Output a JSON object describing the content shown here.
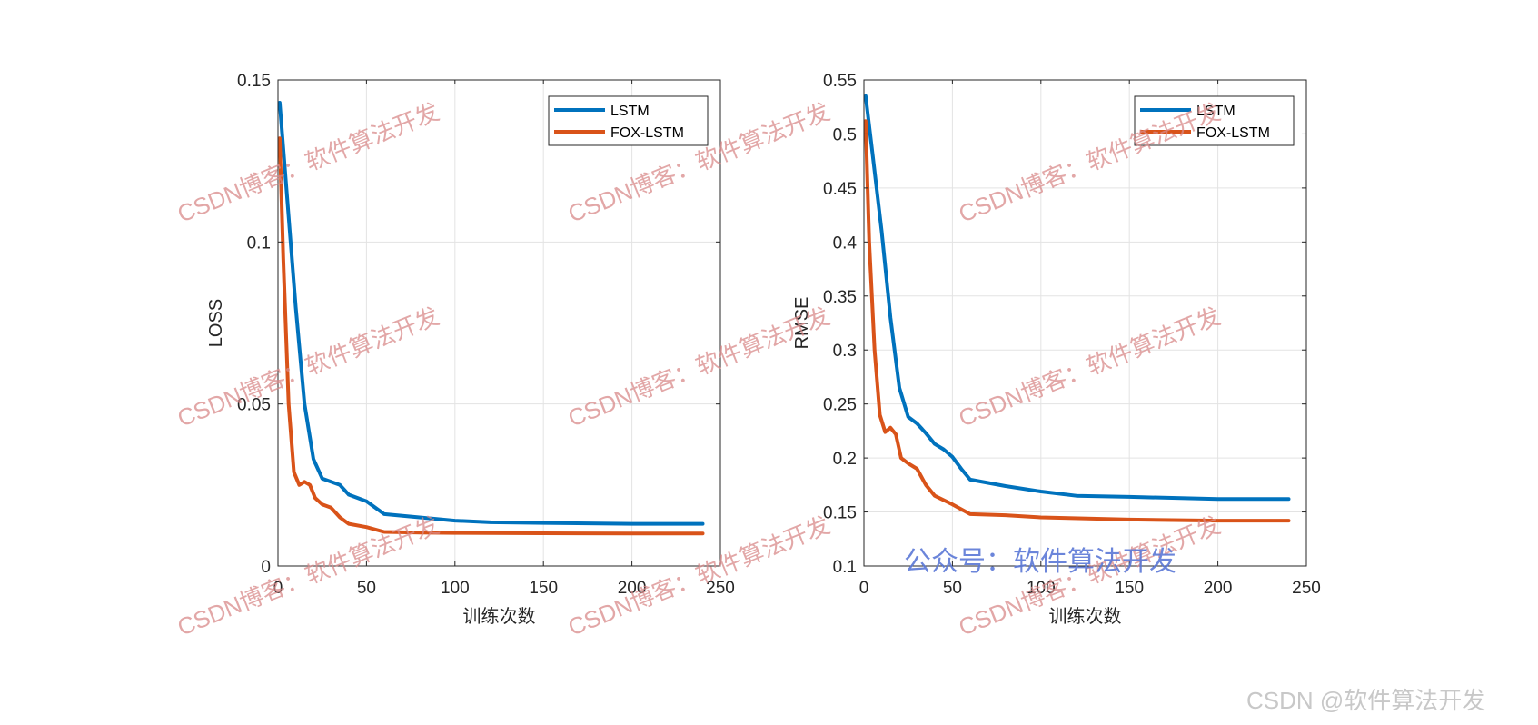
{
  "chart_data": [
    {
      "type": "line",
      "xlabel": "训练次数",
      "ylabel": "LOSS",
      "xlim": [
        0,
        250
      ],
      "ylim": [
        0,
        0.15
      ],
      "xticks": [
        "0",
        "50",
        "100",
        "150",
        "200",
        "250"
      ],
      "yticks": [
        "0",
        "0.05",
        "0.1",
        "0.15"
      ],
      "xtick_values": [
        0,
        50,
        100,
        150,
        200,
        250
      ],
      "ytick_values": [
        0,
        0.05,
        0.1,
        0.15
      ],
      "grid": true,
      "legend_position": "top-right",
      "series": [
        {
          "name": "LSTM",
          "color": "#0072BD",
          "x": [
            1,
            5,
            10,
            15,
            20,
            25,
            30,
            35,
            40,
            45,
            50,
            55,
            60,
            80,
            100,
            120,
            150,
            200,
            240
          ],
          "y": [
            0.143,
            0.115,
            0.08,
            0.05,
            0.033,
            0.027,
            0.026,
            0.025,
            0.022,
            0.021,
            0.02,
            0.018,
            0.016,
            0.015,
            0.014,
            0.0135,
            0.0133,
            0.013,
            0.013
          ]
        },
        {
          "name": "FOX-LSTM",
          "color": "#D95319",
          "x": [
            1,
            3,
            6,
            9,
            12,
            15,
            18,
            21,
            25,
            30,
            35,
            40,
            50,
            60,
            80,
            100,
            150,
            200,
            240
          ],
          "y": [
            0.132,
            0.095,
            0.05,
            0.029,
            0.025,
            0.026,
            0.025,
            0.021,
            0.019,
            0.018,
            0.015,
            0.013,
            0.012,
            0.0105,
            0.0103,
            0.0102,
            0.0101,
            0.01,
            0.01
          ]
        }
      ]
    },
    {
      "type": "line",
      "xlabel": "训练次数",
      "ylabel": "RMSE",
      "xlim": [
        0,
        250
      ],
      "ylim": [
        0.1,
        0.55
      ],
      "xticks": [
        "0",
        "50",
        "100",
        "150",
        "200",
        "250"
      ],
      "yticks": [
        "0.1",
        "0.15",
        "0.2",
        "0.25",
        "0.3",
        "0.35",
        "0.4",
        "0.45",
        "0.5",
        "0.55"
      ],
      "xtick_values": [
        0,
        50,
        100,
        150,
        200,
        250
      ],
      "ytick_values": [
        0.1,
        0.15,
        0.2,
        0.25,
        0.3,
        0.35,
        0.4,
        0.45,
        0.5,
        0.55
      ],
      "grid": true,
      "legend_position": "top-right",
      "series": [
        {
          "name": "LSTM",
          "color": "#0072BD",
          "x": [
            1,
            5,
            10,
            15,
            20,
            25,
            30,
            35,
            40,
            45,
            50,
            55,
            60,
            80,
            100,
            120,
            150,
            200,
            240
          ],
          "y": [
            0.535,
            0.48,
            0.41,
            0.33,
            0.265,
            0.238,
            0.232,
            0.223,
            0.213,
            0.208,
            0.201,
            0.19,
            0.18,
            0.174,
            0.169,
            0.165,
            0.164,
            0.162,
            0.162
          ]
        },
        {
          "name": "FOX-LSTM",
          "color": "#D95319",
          "x": [
            1,
            3,
            6,
            9,
            12,
            15,
            18,
            21,
            25,
            30,
            35,
            40,
            50,
            60,
            80,
            100,
            150,
            200,
            240
          ],
          "y": [
            0.512,
            0.4,
            0.3,
            0.24,
            0.224,
            0.228,
            0.222,
            0.2,
            0.195,
            0.19,
            0.175,
            0.165,
            0.157,
            0.148,
            0.147,
            0.145,
            0.143,
            0.142,
            0.142
          ]
        }
      ]
    }
  ],
  "watermarks": {
    "repeat_text": "CSDN博客：软件算法开发",
    "blue_text": "公众号：软件算法开发",
    "credit_text": "CSDN @软件算法开发"
  }
}
